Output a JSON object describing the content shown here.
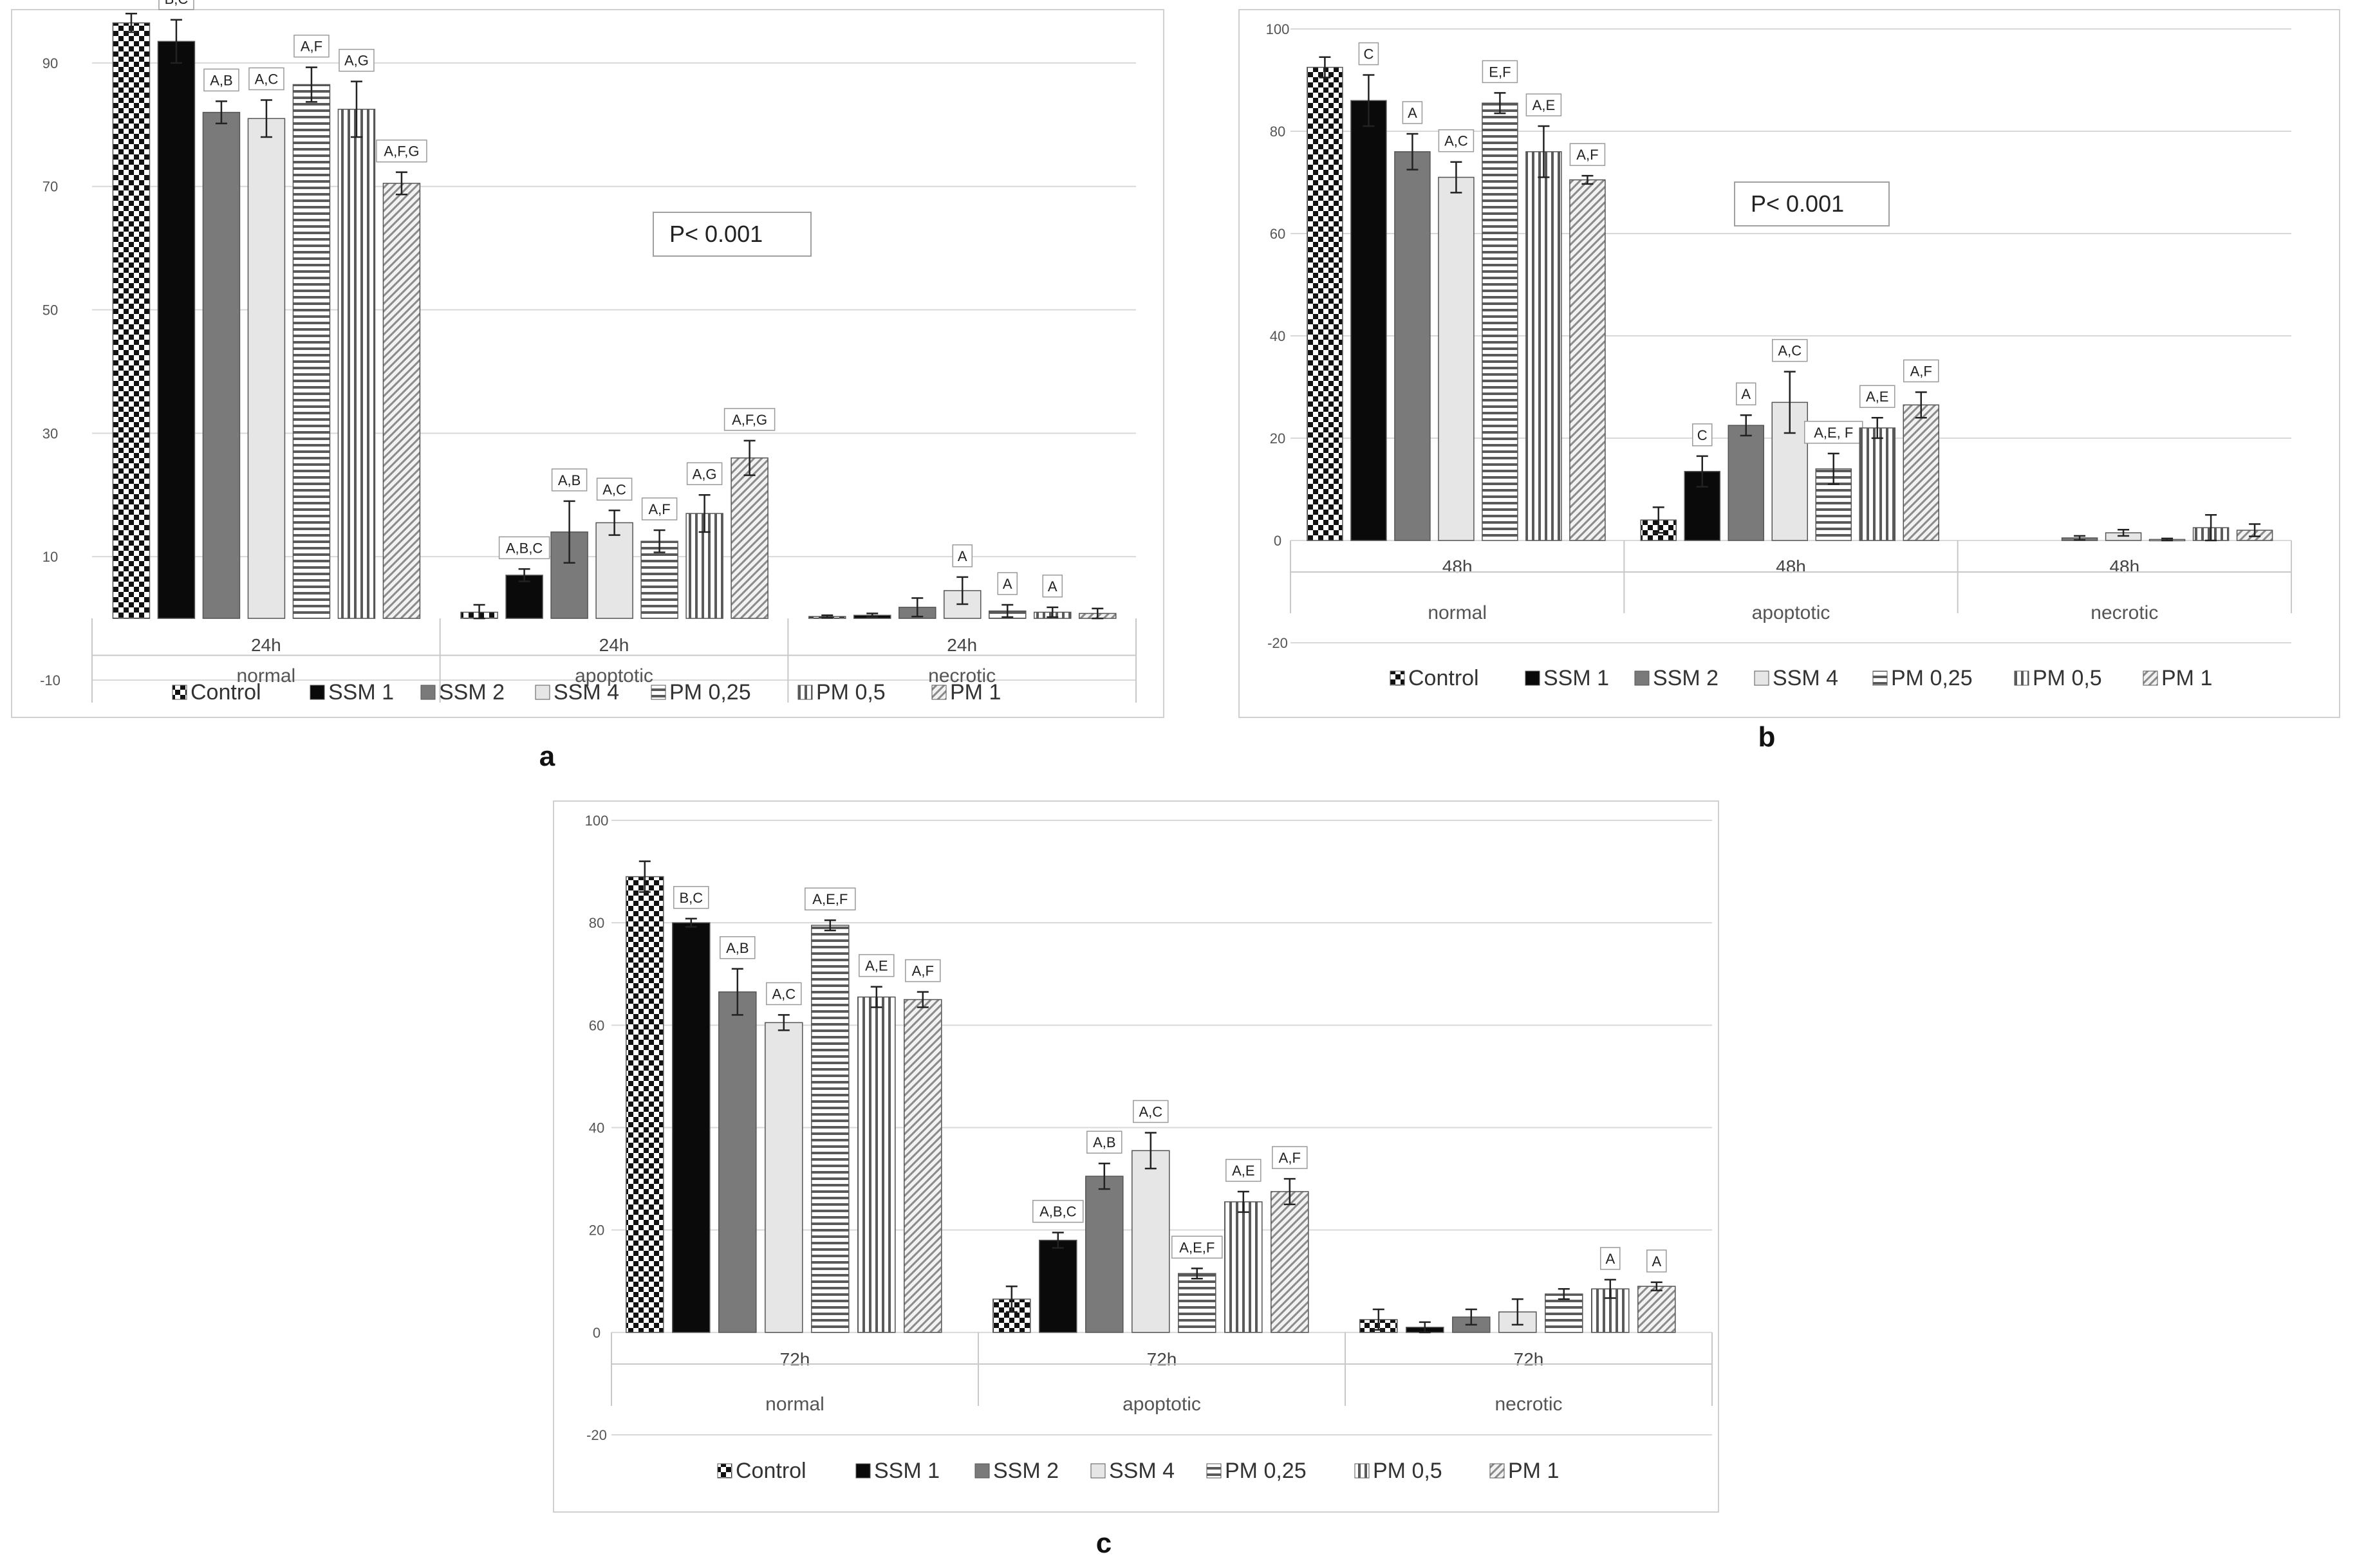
{
  "series_names": [
    "Control",
    "SSM 1",
    "SSM 2",
    "SSM 4",
    "PM 0,25",
    "PM 0,5",
    "PM 1"
  ],
  "significance_note": "P< 0.001",
  "panel_labels": [
    "a",
    "b",
    "c"
  ],
  "chart_data": [
    {
      "type": "bar",
      "panel": "a",
      "title": "",
      "categories": [
        "normal",
        "apoptotic",
        "necrotic"
      ],
      "time_labels": [
        "24h",
        "24h",
        "24h"
      ],
      "ylim": [
        -10,
        100
      ],
      "yticks": [
        -10,
        10,
        30,
        50,
        70,
        90
      ],
      "series": [
        {
          "name": "Control",
          "values": [
            96.5,
            1,
            0.3
          ],
          "errors": [
            1.5,
            1.2,
            0.2
          ],
          "labels": [
            "",
            "",
            ""
          ]
        },
        {
          "name": "SSM 1",
          "values": [
            93.5,
            7,
            0.5
          ],
          "errors": [
            3.5,
            1,
            0.3
          ],
          "labels": [
            "B,C",
            "A,B,C",
            ""
          ]
        },
        {
          "name": "SSM 2",
          "values": [
            82,
            14,
            1.8
          ],
          "errors": [
            1.8,
            5,
            1.5
          ],
          "labels": [
            "A,B",
            "A,B",
            ""
          ]
        },
        {
          "name": "SSM 4",
          "values": [
            81,
            15.5,
            4.5
          ],
          "errors": [
            3,
            2,
            2.2
          ],
          "labels": [
            "A,C",
            "A,C",
            "A"
          ]
        },
        {
          "name": "PM 0,25",
          "values": [
            86.5,
            12.5,
            1.2
          ],
          "errors": [
            2.8,
            1.8,
            1
          ],
          "labels": [
            "A,F",
            "A,F",
            "A"
          ]
        },
        {
          "name": "PM 0,5",
          "values": [
            82.5,
            17,
            1
          ],
          "errors": [
            4.5,
            3,
            0.8
          ],
          "labels": [
            "A,G",
            "A,G",
            "A"
          ]
        },
        {
          "name": "PM 1",
          "values": [
            70.5,
            26,
            0.8
          ],
          "errors": [
            1.8,
            2.8,
            0.8
          ],
          "labels": [
            "A,F,G",
            "A,F,G",
            ""
          ]
        }
      ]
    },
    {
      "type": "bar",
      "panel": "b",
      "title": "",
      "categories": [
        "normal",
        "apoptotic",
        "necrotic"
      ],
      "time_labels": [
        "48h",
        "48h",
        "48h"
      ],
      "ylim": [
        -20,
        100
      ],
      "yticks": [
        -20,
        0,
        20,
        40,
        60,
        80,
        100
      ],
      "series": [
        {
          "name": "Control",
          "values": [
            92.5,
            4,
            0
          ],
          "errors": [
            2,
            2.5,
            0
          ],
          "labels": [
            "",
            "",
            ""
          ]
        },
        {
          "name": "SSM 1",
          "values": [
            86,
            13.5,
            0
          ],
          "errors": [
            5,
            3,
            0
          ],
          "labels": [
            "C",
            "C",
            ""
          ]
        },
        {
          "name": "SSM 2",
          "values": [
            76,
            22.5,
            0.5
          ],
          "errors": [
            3.5,
            2,
            0.4
          ],
          "labels": [
            "A",
            "A",
            ""
          ]
        },
        {
          "name": "SSM 4",
          "values": [
            71,
            27,
            1.5
          ],
          "errors": [
            3,
            6,
            0.6
          ],
          "labels": [
            "A,C",
            "A,C",
            ""
          ]
        },
        {
          "name": "PM 0,25",
          "values": [
            85.5,
            14,
            0.2
          ],
          "errors": [
            2,
            3,
            0.2
          ],
          "labels": [
            "E,F",
            "A,E, F",
            ""
          ]
        },
        {
          "name": "PM 0,5",
          "values": [
            76,
            22,
            2.5
          ],
          "errors": [
            5,
            2,
            2.5
          ],
          "labels": [
            "A,E",
            "A,E",
            ""
          ]
        },
        {
          "name": "PM 1",
          "values": [
            70.5,
            26.5,
            2
          ],
          "errors": [
            0.8,
            2.5,
            1.2
          ],
          "labels": [
            "A,F",
            "A,F",
            ""
          ]
        }
      ]
    },
    {
      "type": "bar",
      "panel": "c",
      "title": "",
      "categories": [
        "normal",
        "apoptotic",
        "necrotic"
      ],
      "time_labels": [
        "72h",
        "72h",
        "72h"
      ],
      "ylim": [
        -20,
        100
      ],
      "yticks": [
        -20,
        0,
        20,
        40,
        60,
        80,
        100
      ],
      "series": [
        {
          "name": "Control",
          "values": [
            89,
            6.5,
            2.5
          ],
          "errors": [
            3,
            2.5,
            2
          ],
          "labels": [
            "",
            "",
            ""
          ]
        },
        {
          "name": "SSM 1",
          "values": [
            80,
            18,
            1
          ],
          "errors": [
            0.8,
            1.5,
            1
          ],
          "labels": [
            "B,C",
            "A,B,C",
            ""
          ]
        },
        {
          "name": "SSM 2",
          "values": [
            66.5,
            30.5,
            3
          ],
          "errors": [
            4.5,
            2.5,
            1.5
          ],
          "labels": [
            "A,B",
            "A,B",
            ""
          ]
        },
        {
          "name": "SSM 4",
          "values": [
            60.5,
            35.5,
            4
          ],
          "errors": [
            1.5,
            3.5,
            2.5
          ],
          "labels": [
            "A,C",
            "A,C",
            ""
          ]
        },
        {
          "name": "PM 0,25",
          "values": [
            79.5,
            11.5,
            7.5
          ],
          "errors": [
            1,
            1,
            1
          ],
          "labels": [
            "A,E,F",
            "A,E,F",
            ""
          ]
        },
        {
          "name": "PM 0,5",
          "values": [
            65.5,
            25.5,
            8.5
          ],
          "errors": [
            2,
            2,
            1.8
          ],
          "labels": [
            "A,E",
            "A,E",
            "A"
          ]
        },
        {
          "name": "PM 1",
          "values": [
            65,
            27.5,
            9
          ],
          "errors": [
            1.5,
            2.5,
            0.8
          ],
          "labels": [
            "A,F",
            "A,F",
            "A"
          ]
        }
      ]
    }
  ]
}
